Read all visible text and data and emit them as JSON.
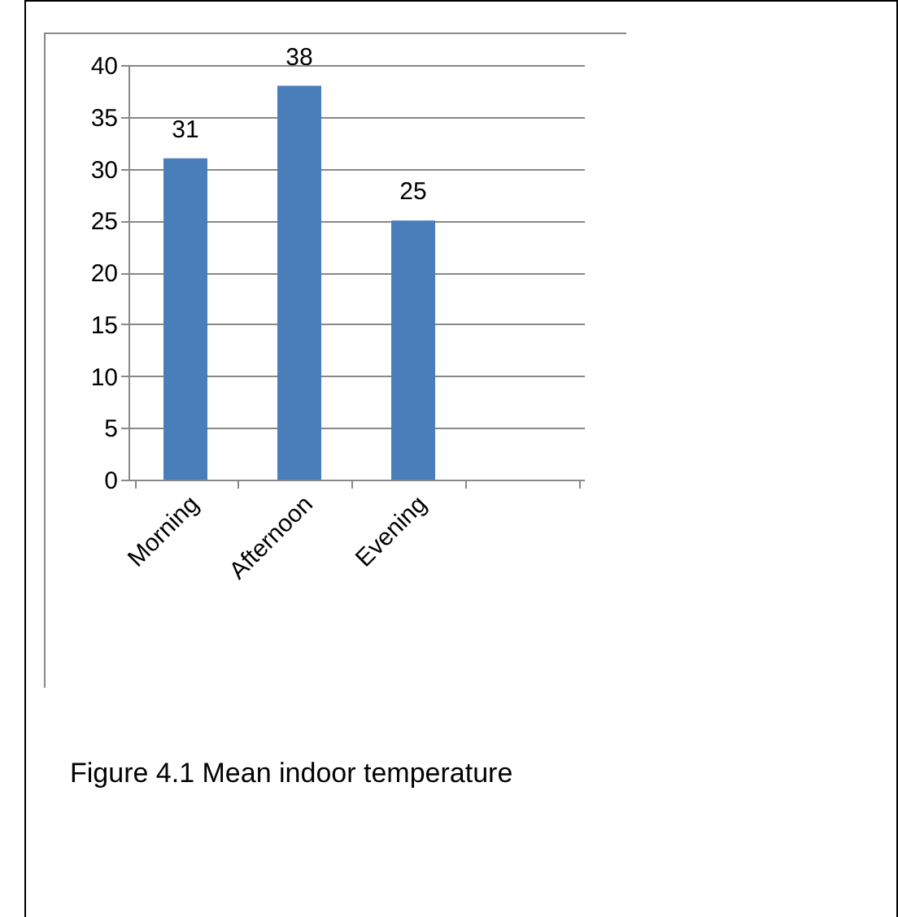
{
  "chart_data": {
    "type": "bar",
    "categories": [
      "Morning",
      "Afternoon",
      "Evening",
      null
    ],
    "values": [
      31,
      38,
      25,
      null
    ],
    "color": "#4a7ebb",
    "ylim": [
      0,
      40
    ],
    "yticks": [
      0,
      5,
      10,
      15,
      20,
      25,
      30,
      35,
      40
    ],
    "grid": "y",
    "data_labels": true,
    "annotations": [
      "Figure 4.1 Mean indoor temperature"
    ]
  }
}
